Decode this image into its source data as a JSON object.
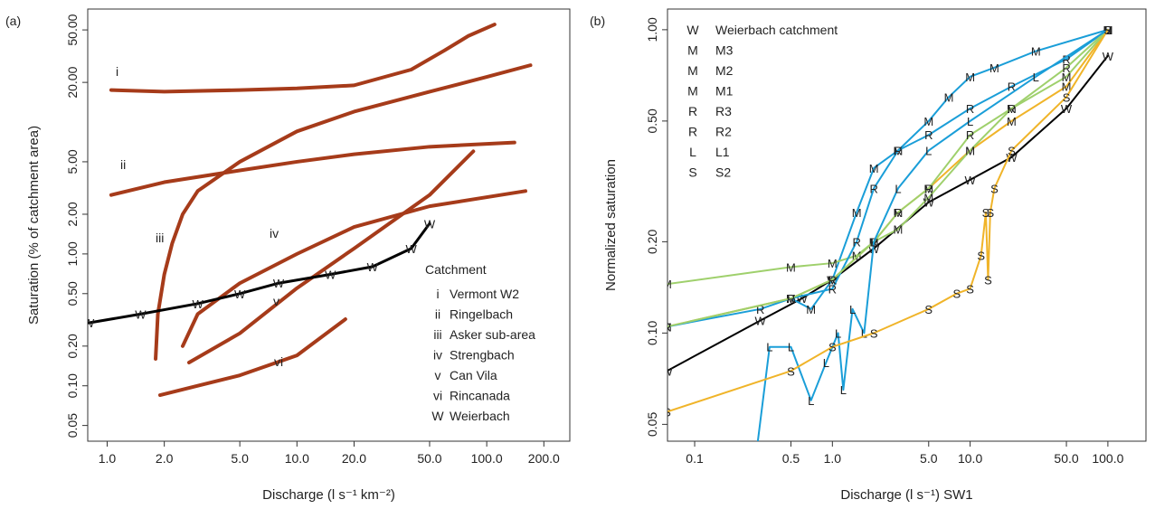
{
  "chart_data": [
    {
      "type": "line",
      "label": "(a)",
      "x_label": "Discharge (l s⁻¹ km⁻²)",
      "y_label": "Saturation (% of catchment area)",
      "log_x": true,
      "log_y": true,
      "xlim": [
        0.79,
        274
      ],
      "ylim": [
        0.038,
        72
      ],
      "xticks": [
        {
          "value": 1,
          "label": "1.0"
        },
        {
          "value": 2,
          "label": "2.0"
        },
        {
          "value": 5,
          "label": "5.0"
        },
        {
          "value": 10,
          "label": "10.0"
        },
        {
          "value": 20,
          "label": "20.0"
        },
        {
          "value": 50,
          "label": "50.0"
        },
        {
          "value": 100,
          "label": "100.0"
        },
        {
          "value": 200,
          "label": "200.0"
        }
      ],
      "yticks": [
        {
          "value": 0.05,
          "label": "0.05"
        },
        {
          "value": 0.1,
          "label": "0.10"
        },
        {
          "value": 0.2,
          "label": "0.20"
        },
        {
          "value": 0.5,
          "label": "0.50"
        },
        {
          "value": 1,
          "label": "1.00"
        },
        {
          "value": 2,
          "label": "2.00"
        },
        {
          "value": 5,
          "label": "5.00"
        },
        {
          "value": 20,
          "label": "20.00"
        },
        {
          "value": 50,
          "label": "50.00"
        }
      ],
      "legend_title": "Catchment",
      "legend": "bottom-right",
      "series": [
        {
          "name": "Vermont W2",
          "symbol": "i",
          "color": "#a63b1a",
          "x": [
            1.05,
            2,
            5,
            10,
            20,
            40,
            60,
            80,
            110
          ],
          "y": [
            17.5,
            17,
            17.5,
            18,
            19,
            25,
            35,
            45,
            55
          ]
        },
        {
          "name": "Ringelbach",
          "symbol": "ii",
          "color": "#a63b1a",
          "x": [
            1.05,
            2,
            5,
            10,
            20,
            50,
            140
          ],
          "y": [
            2.8,
            3.5,
            4.3,
            5,
            5.7,
            6.5,
            7
          ]
        },
        {
          "name": "Asker sub-area",
          "symbol": "iii",
          "color": "#a63b1a",
          "x": [
            1.8,
            1.85,
            2,
            2.2,
            2.5,
            3,
            5,
            10,
            20,
            50,
            100,
            170
          ],
          "y": [
            0.16,
            0.35,
            0.7,
            1.2,
            2,
            3,
            5,
            8.5,
            12,
            17,
            22,
            27
          ]
        },
        {
          "name": "Strengbach",
          "symbol": "iv",
          "color": "#a63b1a",
          "x": [
            2.5,
            3,
            5,
            10,
            20,
            50,
            160
          ],
          "y": [
            0.2,
            0.35,
            0.6,
            1,
            1.6,
            2.3,
            3
          ]
        },
        {
          "name": "Can Vila",
          "symbol": "v",
          "color": "#a63b1a",
          "x": [
            2.7,
            5,
            10,
            20,
            50,
            85
          ],
          "y": [
            0.15,
            0.25,
            0.55,
            1.1,
            2.8,
            6
          ]
        },
        {
          "name": "Rincanada",
          "symbol": "vi",
          "color": "#a63b1a",
          "x": [
            1.9,
            3,
            5,
            10,
            18
          ],
          "y": [
            0.085,
            0.1,
            0.12,
            0.17,
            0.32
          ]
        },
        {
          "name": "Weierbach",
          "symbol": "W",
          "color": "#000000",
          "markers": true,
          "x": [
            0.8,
            1.5,
            3,
            5,
            8,
            15,
            25,
            40,
            50
          ],
          "y": [
            0.3,
            0.35,
            0.42,
            0.5,
            0.6,
            0.7,
            0.8,
            1.1,
            1.7
          ]
        }
      ]
    },
    {
      "type": "line",
      "label": "(b)",
      "x_label": "Discharge (l s⁻¹) SW1",
      "y_label": "Normalized  saturation",
      "log_x": true,
      "log_y": true,
      "xlim": [
        0.0635,
        189
      ],
      "ylim": [
        0.044,
        1.17
      ],
      "xticks": [
        0.1,
        0.5,
        {
          "value": 1,
          "label": "1.0"
        },
        {
          "value": 5,
          "label": "5.0"
        },
        {
          "value": 10,
          "label": "10.0"
        },
        {
          "value": 50,
          "label": "50.0"
        },
        {
          "value": 100,
          "label": "100.0"
        }
      ],
      "yticks": [
        0.05,
        {
          "value": 0.1,
          "label": "0.10"
        },
        {
          "value": 0.2,
          "label": "0.20"
        },
        {
          "value": 0.5,
          "label": "0.50"
        },
        {
          "value": 1,
          "label": "1.00"
        }
      ],
      "legend": "top-left",
      "series": [
        {
          "name": "Weierbach catchment",
          "symbol": "W",
          "color": "#000000",
          "x": [
            0.063,
            0.3,
            0.6,
            1,
            2,
            5,
            10,
            20,
            50,
            100
          ],
          "y": [
            0.075,
            0.11,
            0.13,
            0.15,
            0.19,
            0.27,
            0.32,
            0.38,
            0.55,
            0.82
          ]
        },
        {
          "name": "M3",
          "symbol": "M",
          "color": "#1a9ed8",
          "x": [
            0.5,
            0.7,
            1,
            1.5,
            2,
            3,
            5,
            7,
            10,
            15,
            30,
            100
          ],
          "y": [
            0.13,
            0.12,
            0.15,
            0.25,
            0.35,
            0.4,
            0.5,
            0.6,
            0.7,
            0.75,
            0.85,
            1
          ]
        },
        {
          "name": "M2",
          "symbol": "M",
          "color": "#f0b429",
          "x": [
            0.063,
            0.5,
            1,
            2,
            3,
            5,
            10,
            20,
            50,
            100
          ],
          "y": [
            0.105,
            0.13,
            0.15,
            0.2,
            0.25,
            0.3,
            0.4,
            0.5,
            0.65,
            1
          ]
        },
        {
          "name": "M1",
          "symbol": "M",
          "color": "#9fd06c",
          "x": [
            0.063,
            0.5,
            1,
            1.5,
            2,
            3,
            5,
            10,
            20,
            50,
            100
          ],
          "y": [
            0.145,
            0.165,
            0.17,
            0.18,
            0.2,
            0.22,
            0.28,
            0.4,
            0.55,
            0.7,
            1
          ]
        },
        {
          "name": "R3",
          "symbol": "R",
          "color": "#1a9ed8",
          "x": [
            0.063,
            0.3,
            0.5,
            1,
            1.5,
            2,
            3,
            5,
            10,
            20,
            50,
            100
          ],
          "y": [
            0.105,
            0.12,
            0.13,
            0.14,
            0.2,
            0.3,
            0.4,
            0.45,
            0.55,
            0.65,
            0.8,
            1
          ]
        },
        {
          "name": "R2",
          "symbol": "R",
          "color": "#9fd06c",
          "x": [
            0.063,
            0.5,
            1,
            2,
            3,
            5,
            10,
            20,
            50,
            100
          ],
          "y": [
            0.105,
            0.13,
            0.15,
            0.2,
            0.25,
            0.3,
            0.45,
            0.55,
            0.75,
            1
          ]
        },
        {
          "name": "L1",
          "symbol": "L",
          "color": "#1a9ed8",
          "x": [
            0.27,
            0.35,
            0.5,
            0.7,
            0.9,
            1.1,
            1.2,
            1.4,
            1.7,
            2,
            3,
            5,
            10,
            30,
            100
          ],
          "y": [
            0.035,
            0.09,
            0.09,
            0.06,
            0.08,
            0.1,
            0.065,
            0.12,
            0.1,
            0.2,
            0.3,
            0.4,
            0.5,
            0.7,
            1
          ]
        },
        {
          "name": "S2",
          "symbol": "S",
          "color": "#f0b429",
          "x": [
            0.063,
            0.5,
            1,
            2,
            5,
            8,
            10,
            12,
            13,
            13.5,
            14,
            15,
            20,
            50,
            100
          ],
          "y": [
            0.055,
            0.075,
            0.09,
            0.1,
            0.12,
            0.135,
            0.14,
            0.18,
            0.25,
            0.15,
            0.25,
            0.3,
            0.4,
            0.6,
            1
          ]
        }
      ]
    }
  ]
}
